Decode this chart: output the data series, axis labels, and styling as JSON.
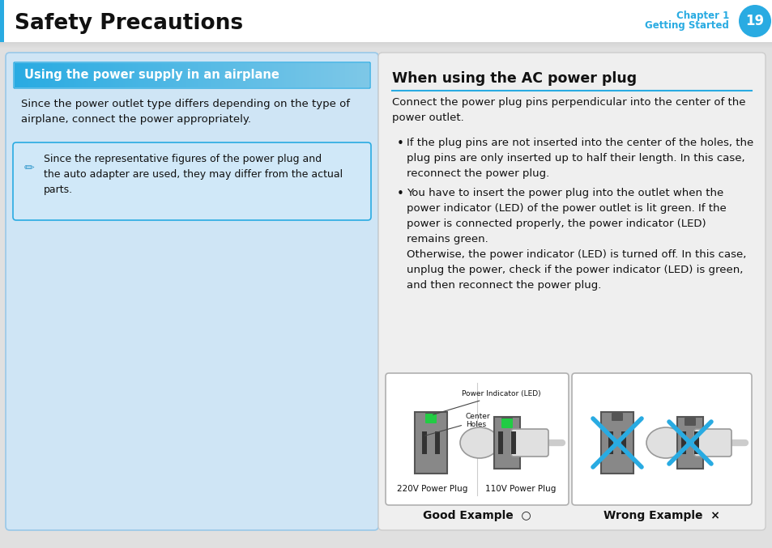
{
  "title": "Safety Precautions",
  "chapter_line1": "Chapter 1",
  "chapter_line2": "Getting Started",
  "page_num": "19",
  "section_title": "Using the power supply in an airplane",
  "left_body": "Since the power outlet type differs depending on the type of\nairplane, connect the power appropriately.",
  "note_text": "Since the representative figures of the power plug and\nthe auto adapter are used, they may differ from the actual\nparts.",
  "right_title": "When using the AC power plug",
  "right_intro": "Connect the power plug pins perpendicular into the center of the\npower outlet.",
  "bullet1": "If the plug pins are not inserted into the center of the holes, the\nplug pins are only inserted up to half their length. In this case,\nreconnect the power plug.",
  "bullet2": "You have to insert the power plug into the outlet when the\npower indicator (LED) of the power outlet is lit green. If the\npower is connected properly, the power indicator (LED)\nremains green.\nOtherwise, the power indicator (LED) is turned off. In this case,\nunplug the power, check if the power indicator (LED) is green,\nand then reconnect the power plug.",
  "good_label": "Good Example",
  "wrong_label": "Wrong Example",
  "sub_220": "220V Power Plug",
  "sub_110": "110V Power Plug",
  "label_led": "Power Indicator (LED)",
  "label_center": "Center\nHoles",
  "blue": "#29abe2",
  "dark": "#111111",
  "page_gray": "#e0e0e0",
  "left_bg": "#cfe5f5",
  "left_border": "#99c8e8",
  "note_bg": "#d0e8f8",
  "right_bg": "#efefef",
  "right_border": "#cccccc",
  "white": "#ffffff",
  "title_bar_blue": "#29abe2",
  "title_bar_grad_end": "#7ec8e8"
}
